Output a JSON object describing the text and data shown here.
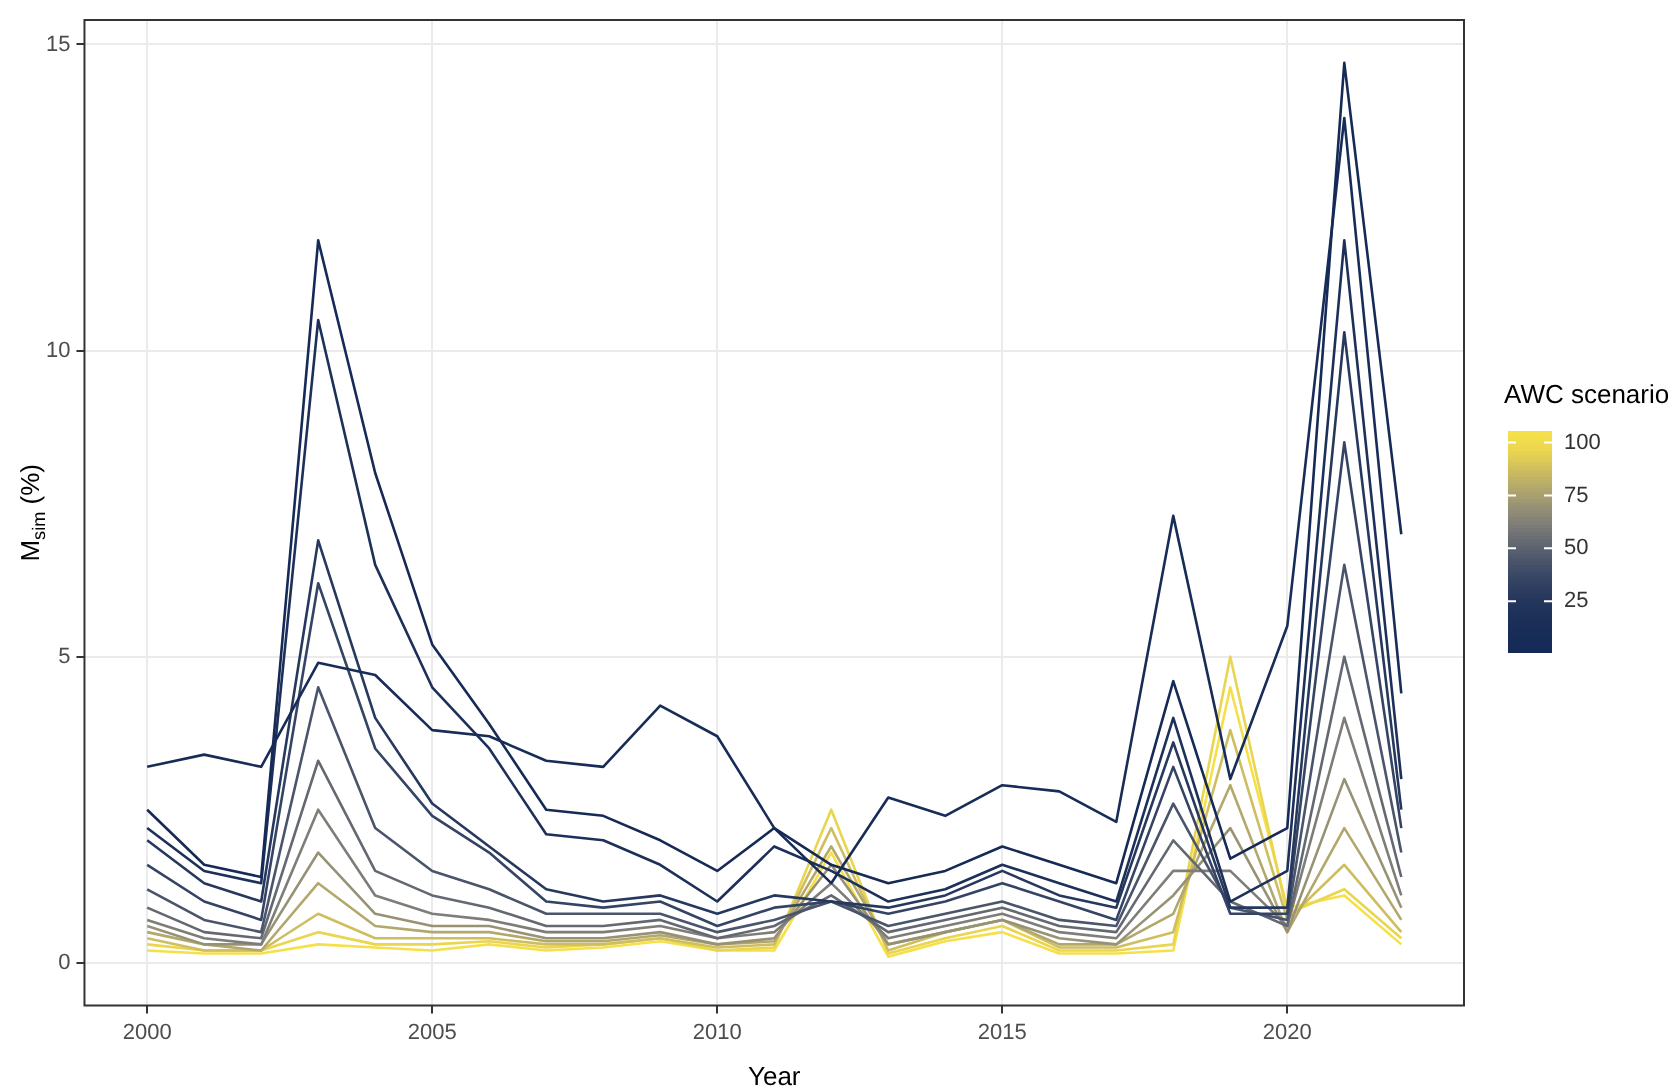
{
  "chart_data": {
    "type": "line",
    "xlabel": "Year",
    "ylabel": "M$_{sim}$ (%)",
    "clabel": "AWC scenario",
    "x": [
      2000,
      2001,
      2002,
      2003,
      2004,
      2005,
      2006,
      2007,
      2008,
      2009,
      2010,
      2011,
      2012,
      2013,
      2014,
      2015,
      2016,
      2017,
      2018,
      2019,
      2020,
      2021,
      2022
    ],
    "xlim": [
      1998.9,
      2023.1
    ],
    "xticks": [
      2000,
      2005,
      2010,
      2015,
      2020
    ],
    "ylim": [
      -0.7,
      15.4
    ],
    "yticks": [
      0,
      5,
      10,
      15
    ],
    "clim": [
      1,
      105
    ],
    "cticks": [
      25,
      50,
      75,
      100
    ],
    "grid": true,
    "marker": "none",
    "line_style": "solid",
    "series": [
      {
        "color": "#152a56",
        "values": [
          2.5,
          1.6,
          1.4,
          11.8,
          8.0,
          5.2,
          3.9,
          2.5,
          2.4,
          2.0,
          1.5,
          2.2,
          1.6,
          1.3,
          1.5,
          1.9,
          1.6,
          1.3,
          4.6,
          1.7,
          2.2,
          14.7,
          7.0
        ]
      },
      {
        "color": "#172c57",
        "values": [
          3.2,
          3.4,
          3.2,
          4.9,
          4.7,
          3.8,
          3.7,
          3.3,
          3.2,
          4.2,
          3.7,
          2.2,
          1.3,
          2.7,
          2.4,
          2.9,
          2.8,
          2.3,
          7.3,
          3.0,
          5.5,
          13.8,
          4.4
        ]
      },
      {
        "color": "#1c3059",
        "values": [
          2.2,
          1.5,
          1.3,
          10.5,
          6.5,
          4.5,
          3.5,
          2.1,
          2.0,
          1.6,
          1.0,
          1.9,
          1.5,
          1.0,
          1.2,
          1.6,
          1.3,
          1.0,
          4.0,
          1.0,
          1.5,
          11.8,
          3.0
        ]
      },
      {
        "color": "#26385d",
        "values": [
          2.0,
          1.3,
          1.0,
          6.9,
          4.0,
          2.6,
          1.9,
          1.2,
          1.0,
          1.1,
          0.8,
          1.1,
          1.0,
          0.9,
          1.1,
          1.5,
          1.1,
          0.9,
          3.6,
          0.9,
          0.9,
          10.3,
          2.5
        ]
      },
      {
        "color": "#354464",
        "values": [
          1.6,
          1.0,
          0.7,
          6.2,
          3.5,
          2.4,
          1.8,
          1.0,
          0.9,
          1.0,
          0.6,
          0.9,
          1.0,
          0.8,
          1.0,
          1.3,
          1.0,
          0.7,
          3.2,
          0.8,
          0.8,
          8.5,
          2.2
        ]
      },
      {
        "color": "#4a556b",
        "values": [
          1.2,
          0.7,
          0.5,
          4.5,
          2.2,
          1.5,
          1.2,
          0.8,
          0.8,
          0.8,
          0.5,
          0.7,
          1.0,
          0.6,
          0.8,
          1.0,
          0.7,
          0.6,
          2.6,
          0.9,
          0.7,
          6.5,
          1.8
        ]
      },
      {
        "color": "#636871",
        "values": [
          0.9,
          0.5,
          0.4,
          3.3,
          1.5,
          1.1,
          0.9,
          0.6,
          0.6,
          0.7,
          0.4,
          0.6,
          1.1,
          0.5,
          0.7,
          0.9,
          0.6,
          0.5,
          2.0,
          1.0,
          0.6,
          5.0,
          1.4
        ]
      },
      {
        "color": "#7e7d78",
        "values": [
          0.7,
          0.4,
          0.3,
          2.5,
          1.1,
          0.8,
          0.7,
          0.5,
          0.5,
          0.6,
          0.4,
          0.5,
          1.3,
          0.4,
          0.6,
          0.8,
          0.5,
          0.4,
          1.5,
          1.5,
          0.6,
          4.0,
          1.1
        ]
      },
      {
        "color": "#989275",
        "values": [
          0.6,
          0.3,
          0.3,
          1.8,
          0.8,
          0.6,
          0.6,
          0.4,
          0.4,
          0.5,
          0.3,
          0.4,
          1.6,
          0.3,
          0.5,
          0.7,
          0.4,
          0.3,
          1.1,
          2.2,
          0.5,
          3.0,
          0.9
        ]
      },
      {
        "color": "#b3a86c",
        "values": [
          0.5,
          0.3,
          0.2,
          1.3,
          0.6,
          0.5,
          0.5,
          0.35,
          0.35,
          0.45,
          0.3,
          0.35,
          1.9,
          0.3,
          0.5,
          0.7,
          0.3,
          0.3,
          0.8,
          2.9,
          0.5,
          2.2,
          0.7
        ]
      },
      {
        "color": "#cfbe5f",
        "values": [
          0.4,
          0.2,
          0.2,
          0.8,
          0.4,
          0.4,
          0.4,
          0.3,
          0.3,
          0.4,
          0.25,
          0.3,
          2.2,
          0.2,
          0.5,
          0.7,
          0.25,
          0.25,
          0.5,
          3.8,
          0.7,
          1.6,
          0.5
        ]
      },
      {
        "color": "#ead54f",
        "values": [
          0.3,
          0.2,
          0.2,
          0.5,
          0.3,
          0.3,
          0.35,
          0.25,
          0.3,
          0.4,
          0.2,
          0.25,
          2.5,
          0.15,
          0.4,
          0.6,
          0.2,
          0.2,
          0.3,
          5.0,
          0.8,
          1.2,
          0.4
        ]
      },
      {
        "color": "#f6e049",
        "values": [
          0.2,
          0.15,
          0.15,
          0.3,
          0.25,
          0.2,
          0.3,
          0.2,
          0.25,
          0.35,
          0.2,
          0.2,
          1.8,
          0.1,
          0.35,
          0.5,
          0.15,
          0.15,
          0.2,
          4.5,
          0.9,
          1.1,
          0.3
        ]
      }
    ]
  }
}
